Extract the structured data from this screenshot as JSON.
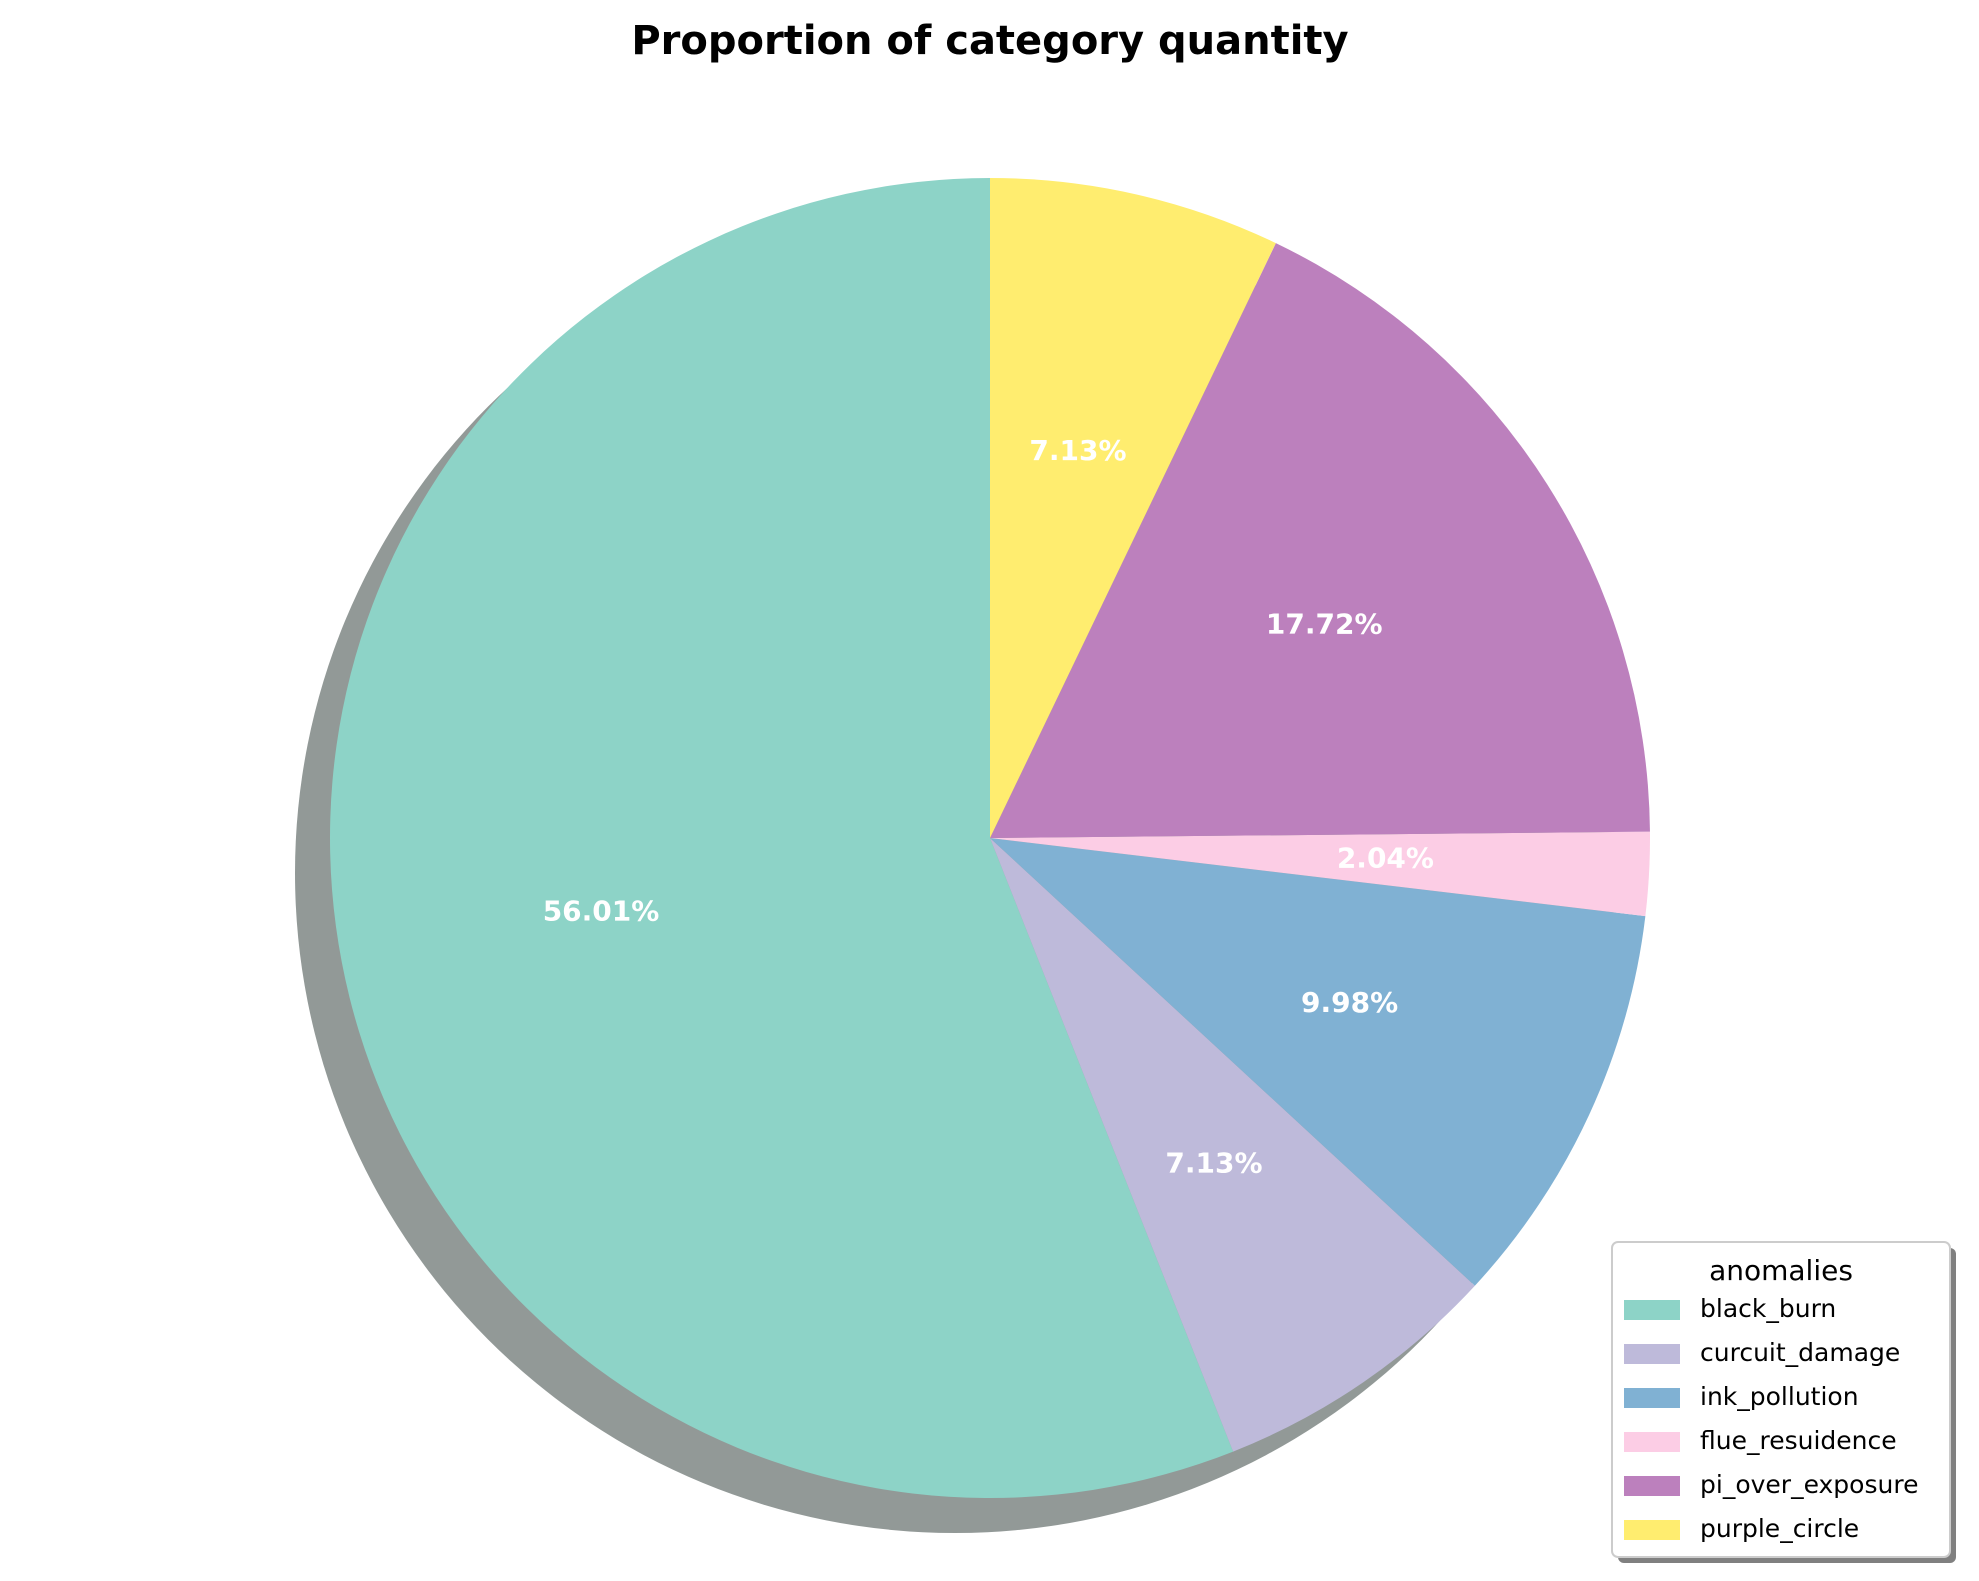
{
  "chart_data": {
    "type": "pie",
    "title": "Proportion of category quantity",
    "start_angle_deg": 90,
    "direction": "counterclockwise",
    "shadow": true,
    "slices": [
      {
        "label": "black_burn",
        "value": 56.01,
        "pct_label": "56.01%",
        "color": "#8dd3c7"
      },
      {
        "label": "curcuit_damage",
        "value": 7.13,
        "pct_label": "7.13%",
        "color": "#bebada"
      },
      {
        "label": "ink_pollution",
        "value": 9.98,
        "pct_label": "9.98%",
        "color": "#80b1d3"
      },
      {
        "label": "flue_resuidence",
        "value": 2.04,
        "pct_label": "2.04%",
        "color": "#fccde5"
      },
      {
        "label": "pi_over_exposure",
        "value": 17.72,
        "pct_label": "17.72%",
        "color": "#bc80bd"
      },
      {
        "label": "purple_circle",
        "value": 7.13,
        "pct_label": "7.13%",
        "color": "#ffed6f"
      }
    ],
    "legend": {
      "title": "anomalies",
      "placement": "lower right"
    }
  }
}
